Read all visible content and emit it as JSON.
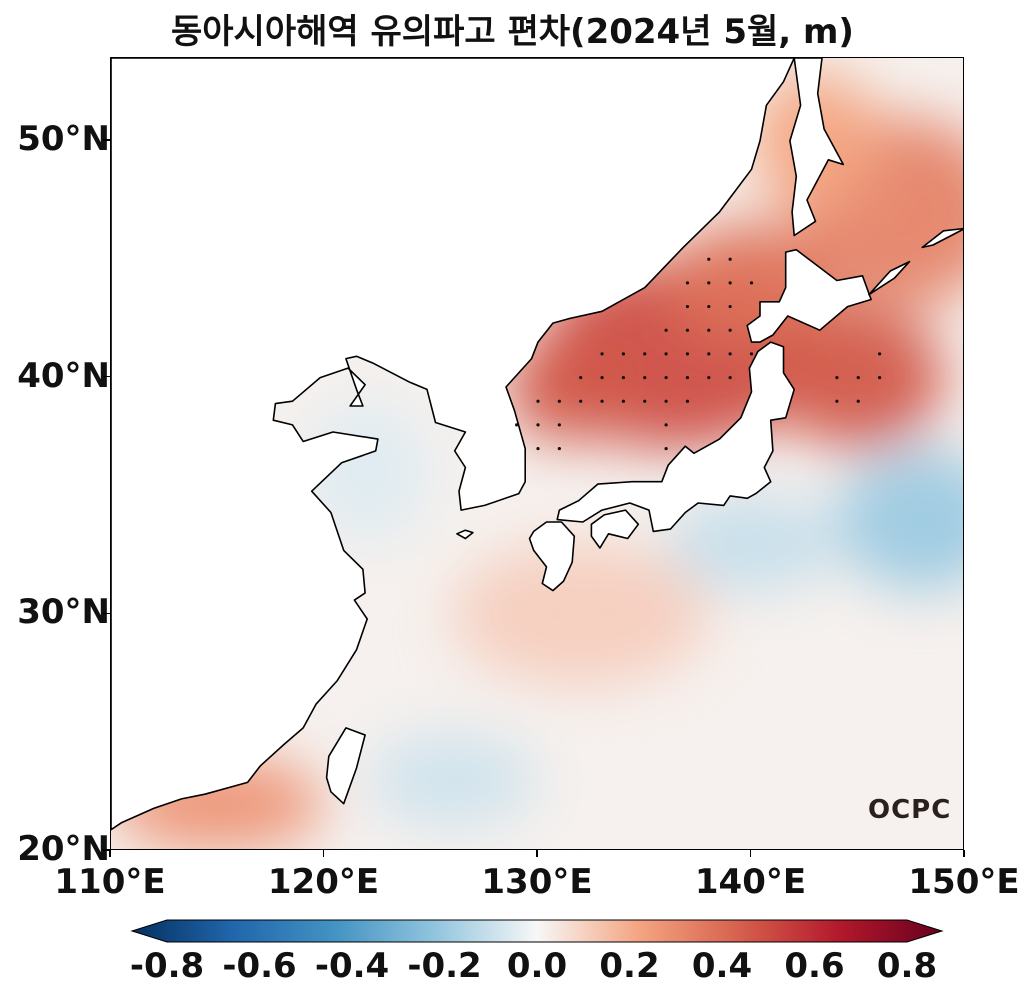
{
  "title": "동아시아해역 유의파고 편차(2024년 5월, m)",
  "logo_text": "OCPC",
  "map": {
    "lon_range": [
      110,
      150
    ],
    "lat_range": [
      20,
      53.5
    ],
    "lat_ticks": [
      {
        "value": 50,
        "label": "50°N"
      },
      {
        "value": 40,
        "label": "40°N"
      },
      {
        "value": 30,
        "label": "30°N"
      },
      {
        "value": 20,
        "label": "20°N"
      }
    ],
    "lon_ticks": [
      {
        "value": 110,
        "label": "110°E"
      },
      {
        "value": 120,
        "label": "120°E"
      },
      {
        "value": 130,
        "label": "130°E"
      },
      {
        "value": 140,
        "label": "140°E"
      },
      {
        "value": 150,
        "label": "150°E"
      }
    ]
  },
  "colorbar": {
    "range": [
      -0.8,
      0.8
    ],
    "labels": [
      "-0.8",
      "-0.6",
      "-0.4",
      "-0.2",
      "0.0",
      "0.2",
      "0.4",
      "0.6",
      "0.8"
    ],
    "colors": {
      "neg_max": "#053061",
      "neg_mid": "#4393c3",
      "zero": "#f7f7f7",
      "pos_mid": "#d6604d",
      "pos_max": "#67001f"
    }
  },
  "significance_dots": [
    [
      138,
      45
    ],
    [
      139,
      45
    ],
    [
      137,
      44
    ],
    [
      138,
      44
    ],
    [
      139,
      44
    ],
    [
      140,
      44
    ],
    [
      137,
      43
    ],
    [
      138,
      43
    ],
    [
      139,
      43
    ],
    [
      136,
      42
    ],
    [
      137,
      42
    ],
    [
      138,
      42
    ],
    [
      139,
      42
    ],
    [
      136,
      41
    ],
    [
      137,
      41
    ],
    [
      138,
      41
    ],
    [
      139,
      41
    ],
    [
      133,
      41
    ],
    [
      134,
      41
    ],
    [
      135,
      41
    ],
    [
      140,
      41
    ],
    [
      146,
      41
    ],
    [
      132,
      40
    ],
    [
      133,
      40
    ],
    [
      134,
      40
    ],
    [
      135,
      40
    ],
    [
      136,
      40
    ],
    [
      137,
      40
    ],
    [
      138,
      40
    ],
    [
      139,
      40
    ],
    [
      144,
      40
    ],
    [
      145,
      40
    ],
    [
      146,
      40
    ],
    [
      130,
      39
    ],
    [
      131,
      39
    ],
    [
      132,
      39
    ],
    [
      133,
      39
    ],
    [
      134,
      39
    ],
    [
      135,
      39
    ],
    [
      136,
      39
    ],
    [
      137,
      39
    ],
    [
      144,
      39
    ],
    [
      145,
      39
    ],
    [
      129,
      38
    ],
    [
      130,
      38
    ],
    [
      131,
      38
    ],
    [
      136,
      38
    ],
    [
      130,
      37
    ],
    [
      131,
      37
    ],
    [
      136,
      37
    ]
  ],
  "anomaly_blobs": [
    {
      "lon": 136.5,
      "lat": 41,
      "rx": 6.5,
      "ry": 4,
      "value": 0.45
    },
    {
      "lon": 131.5,
      "lat": 39.5,
      "rx": 3,
      "ry": 2.2,
      "value": 0.42
    },
    {
      "lon": 140,
      "lat": 44,
      "rx": 4,
      "ry": 2.5,
      "value": 0.35
    },
    {
      "lon": 145,
      "lat": 40,
      "rx": 4,
      "ry": 3,
      "value": 0.42
    },
    {
      "lon": 147,
      "lat": 47,
      "rx": 5,
      "ry": 4,
      "value": 0.3
    },
    {
      "lon": 143,
      "lat": 50,
      "rx": 3,
      "ry": 3,
      "value": 0.2
    },
    {
      "lon": 132,
      "lat": 30,
      "rx": 6,
      "ry": 3,
      "value": 0.1
    },
    {
      "lon": 115,
      "lat": 22,
      "rx": 5,
      "ry": 2,
      "value": 0.25
    },
    {
      "lon": 148,
      "lat": 34,
      "rx": 4,
      "ry": 3,
      "value": -0.18
    },
    {
      "lon": 140,
      "lat": 33,
      "rx": 4,
      "ry": 2,
      "value": -0.1
    },
    {
      "lon": 126,
      "lat": 23,
      "rx": 4,
      "ry": 2,
      "value": -0.08
    },
    {
      "lon": 122,
      "lat": 36,
      "rx": 3,
      "ry": 3,
      "value": -0.05
    }
  ]
}
